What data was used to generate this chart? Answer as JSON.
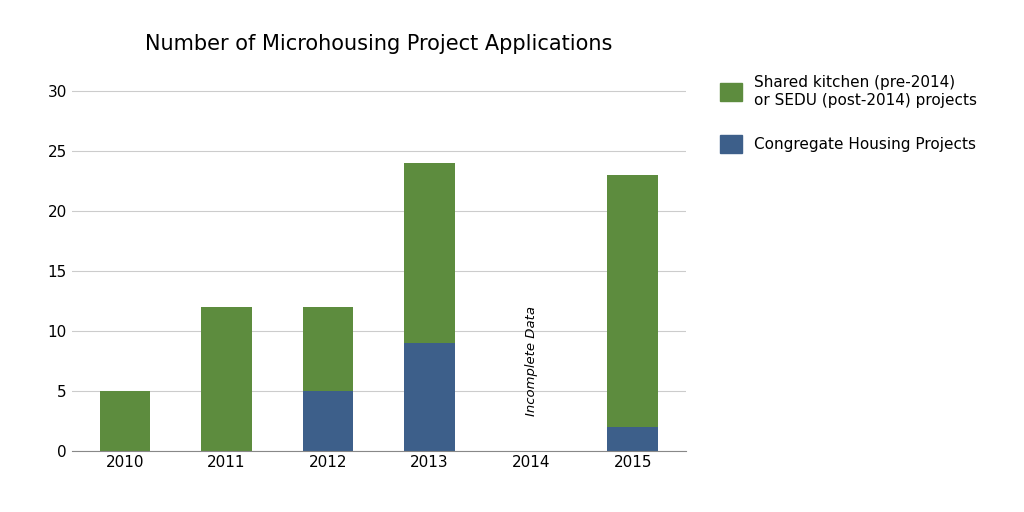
{
  "title": "Number of Microhousing Project Applications",
  "categories": [
    "2010",
    "2011",
    "2012",
    "2013",
    "2014",
    "2015"
  ],
  "congregate": [
    0,
    0,
    5,
    9,
    0,
    2
  ],
  "shared_kitchen": [
    5,
    12,
    7,
    15,
    0,
    21
  ],
  "congregate_color": "#3d5f8a",
  "shared_kitchen_color": "#5d8c3e",
  "background_color": "#ffffff",
  "ylim": [
    0,
    32
  ],
  "yticks": [
    0,
    5,
    10,
    15,
    20,
    25,
    30
  ],
  "legend_label_green": "Shared kitchen (pre-2014)\nor SEDU (post-2014) projects",
  "legend_label_blue": "Congregate Housing Projects",
  "incomplete_label": "Incomplete Data",
  "title_fontsize": 15,
  "tick_fontsize": 11,
  "legend_fontsize": 11
}
